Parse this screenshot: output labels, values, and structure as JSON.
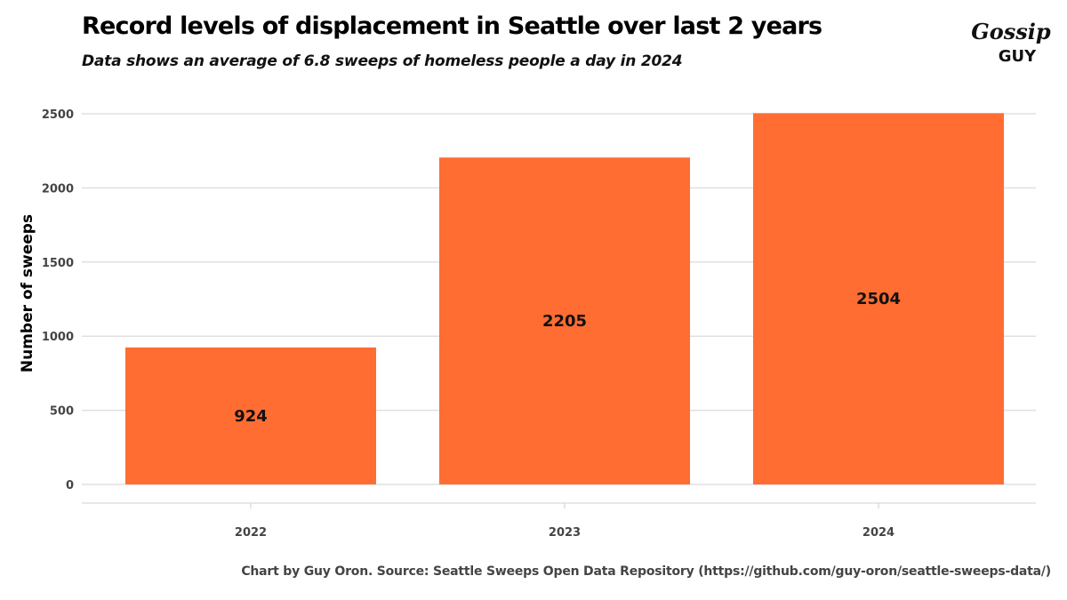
{
  "title": "Record levels of displacement in Seattle over last 2 years",
  "subtitle": "Data shows an average of 6.8 sweeps of homeless people a day in 2024",
  "caption": "Chart by Guy Oron. Source: Seattle Sweeps Open Data Repository (https://github.com/guy-oron/seattle-sweeps-data/)",
  "logo": {
    "text_top": "Gossip",
    "text_bottom": "GUY"
  },
  "chart_data": {
    "type": "bar",
    "categories": [
      "2022",
      "2023",
      "2024"
    ],
    "values": [
      924,
      2205,
      2504
    ],
    "title": "Record levels of displacement in Seattle over last 2 years",
    "xlabel": "",
    "ylabel": "Number of sweeps",
    "ylim": [
      0,
      2500
    ],
    "yticks": [
      0,
      500,
      1000,
      1500,
      2000,
      2500
    ],
    "grid": true,
    "legend": "none",
    "bar_color": "#FF6D33"
  }
}
